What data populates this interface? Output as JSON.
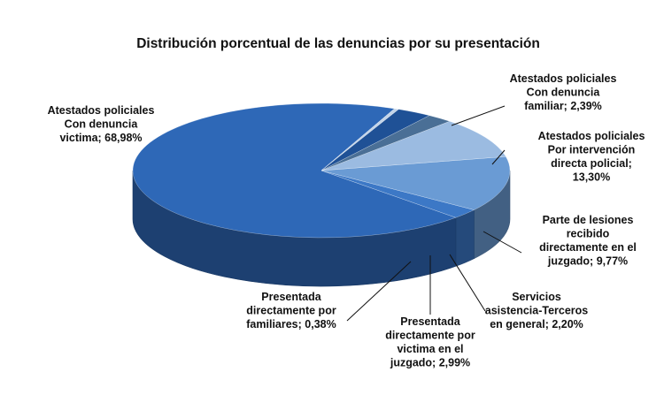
{
  "chart_data": {
    "type": "pie",
    "title": "Distribución porcentual  de las denuncias por su presentación",
    "three_d": true,
    "legend": "none",
    "slices": [
      {
        "label": "Atestados policiales Con denuncia victima; 68,98%",
        "label_lines": [
          "Atestados policiales",
          "Con denuncia",
          "victima; 68,98%"
        ],
        "value": 68.98,
        "color": "#2E68B7"
      },
      {
        "label": "Atestados policiales Con denuncia familiar; 2,39%",
        "label_lines": [
          "Atestados policiales",
          "Con denuncia",
          "familiar; 2,39%"
        ],
        "value": 2.39,
        "color": "#3C78C6"
      },
      {
        "label": "Atestados policiales Por intervención directa policial; 13,30%",
        "label_lines": [
          "Atestados policiales",
          "Por intervención",
          "directa policial;",
          "13,30%"
        ],
        "value": 13.3,
        "color": "#6A9BD4"
      },
      {
        "label": "Parte de lesiones recibido directamente en el juzgado; 9,77%",
        "label_lines": [
          "Parte de lesiones",
          "recibido",
          "directamente en el",
          "juzgado; 9,77%"
        ],
        "value": 9.77,
        "color": "#9BBBE1"
      },
      {
        "label": "Servicios asistencia-Terceros en general; 2,20%",
        "label_lines": [
          "Servicios",
          "asistencia-Terceros",
          "en general; 2,20%"
        ],
        "value": 2.2,
        "color": "#4A6F96"
      },
      {
        "label": "Presentada directamente por victima en el juzgado; 2,99%",
        "label_lines": [
          "Presentada",
          "directamente por",
          "victima en el",
          "juzgado; 2,99%"
        ],
        "value": 2.99,
        "color": "#1F5196"
      },
      {
        "label": "Presentada directamente por familiares; 0,38%",
        "label_lines": [
          "Presentada",
          "directamente por",
          "familiares; 0,38%"
        ],
        "value": 0.38,
        "color": "#C3D4E8"
      }
    ]
  }
}
